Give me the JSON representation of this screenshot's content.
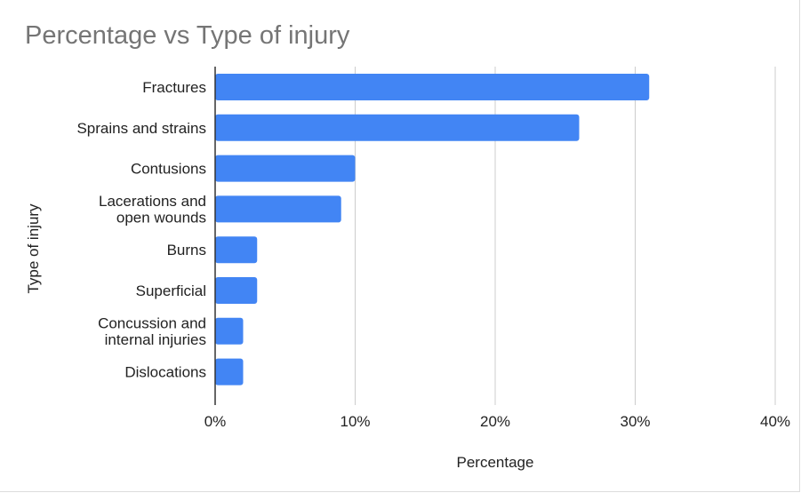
{
  "chart_data": {
    "type": "bar",
    "orientation": "horizontal",
    "title": "Percentage vs Type of injury",
    "xlabel": "Percentage",
    "ylabel": "Type of injury",
    "categories": [
      [
        "Fractures"
      ],
      [
        "Sprains and strains"
      ],
      [
        "Contusions"
      ],
      [
        "Lacerations and",
        "open wounds"
      ],
      [
        "Burns"
      ],
      [
        "Superficial"
      ],
      [
        "Concussion and",
        "internal injuries"
      ],
      [
        "Dislocations"
      ]
    ],
    "values": [
      31,
      26,
      10,
      9,
      3,
      3,
      2,
      2
    ],
    "xlim": [
      0,
      40
    ],
    "xticks": [
      0,
      10,
      20,
      30,
      40
    ],
    "xtick_labels": [
      "0%",
      "10%",
      "20%",
      "30%",
      "40%"
    ],
    "grid": true,
    "legend": "none",
    "bar_color": "#4285f4",
    "grid_color": "#cccccc",
    "axis_color": "#333333"
  }
}
